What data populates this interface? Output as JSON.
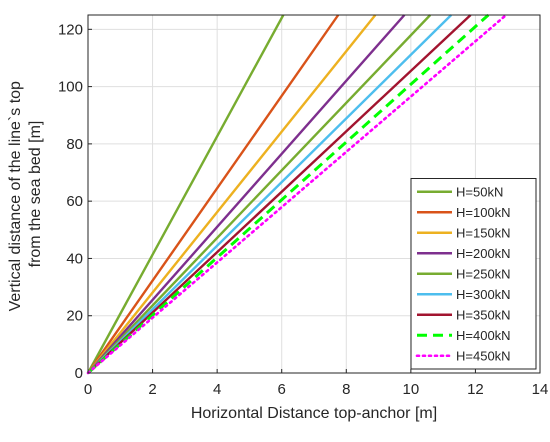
{
  "chart_data": {
    "type": "line",
    "title": "",
    "xlabel": "Horizontal Distance top-anchor [m]",
    "ylabel": [
      "Vertical distance of the line`s top",
      "from the sea bed [m]"
    ],
    "xlim": [
      0,
      14
    ],
    "ylim": [
      0,
      125
    ],
    "xticks": [
      0,
      2,
      4,
      6,
      8,
      10,
      12,
      14
    ],
    "yticks": [
      0,
      20,
      40,
      60,
      80,
      100,
      120
    ],
    "grid": true,
    "legend_position": "bottom-right",
    "series": [
      {
        "name": "H=50kN",
        "color": "#77AC30",
        "style": "solid",
        "x": [
          0,
          6.05
        ],
        "y": [
          0,
          125
        ]
      },
      {
        "name": "H=100kN",
        "color": "#D95319",
        "style": "solid",
        "x": [
          0,
          7.75
        ],
        "y": [
          0,
          125
        ]
      },
      {
        "name": "H=150kN",
        "color": "#EDB120",
        "style": "solid",
        "x": [
          0,
          8.9
        ],
        "y": [
          0,
          125
        ]
      },
      {
        "name": "H=200kN",
        "color": "#7E2F8E",
        "style": "solid",
        "x": [
          0,
          9.8
        ],
        "y": [
          0,
          125
        ]
      },
      {
        "name": "H=250kN",
        "color": "#77AC30",
        "style": "solid",
        "x": [
          0,
          10.6
        ],
        "y": [
          0,
          125
        ]
      },
      {
        "name": "H=300kN",
        "color": "#4DBEEE",
        "style": "solid",
        "x": [
          0,
          11.25
        ],
        "y": [
          0,
          125
        ]
      },
      {
        "name": "H=350kN",
        "color": "#A2142F",
        "style": "solid",
        "x": [
          0,
          11.85
        ],
        "y": [
          0,
          125
        ]
      },
      {
        "name": "H=400kN",
        "color": "#00FF00",
        "style": "dashed",
        "x": [
          0,
          12.4
        ],
        "y": [
          0,
          125
        ]
      },
      {
        "name": "H=450kN",
        "color": "#FF00FF",
        "style": "dotted",
        "x": [
          0,
          12.95
        ],
        "y": [
          0,
          125
        ]
      }
    ]
  }
}
